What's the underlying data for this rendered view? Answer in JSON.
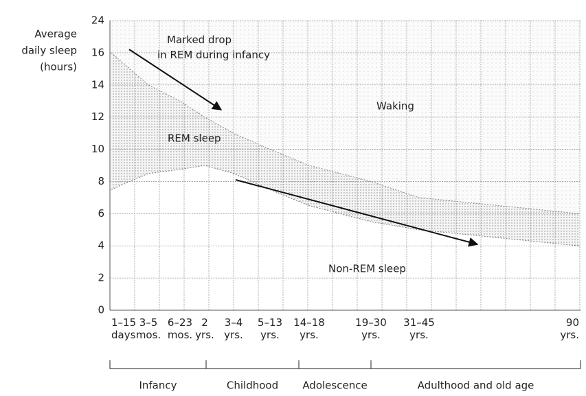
{
  "chart_data": {
    "type": "stacked-area",
    "ylabel": [
      "Average",
      "daily sleep",
      "(hours)"
    ],
    "categories": [
      "1–15 days",
      "3–5 mos.",
      "6–23 mos.",
      "2 yrs.",
      "3–4 yrs.",
      "5–13 yrs.",
      "14–18 yrs.",
      "19–30 yrs.",
      "31–45 yrs.",
      "90 yrs."
    ],
    "series": [
      {
        "name": "Non-REM sleep",
        "color": "#ffffff",
        "values": [
          7.5,
          8.5,
          8.75,
          9,
          8.5,
          7.5,
          6.5,
          5.5,
          5,
          4
        ]
      },
      {
        "name": "REM sleep",
        "color": "#cfcfcf",
        "values": [
          8.5,
          5.5,
          4.25,
          3,
          2.5,
          2.5,
          2.5,
          2.5,
          2,
          2
        ]
      }
    ],
    "ylim": [
      0,
      24
    ],
    "yticks": [
      0,
      2,
      4,
      6,
      8,
      10,
      12,
      14,
      16,
      24
    ],
    "grid": true,
    "annotations": {
      "waking": "Waking",
      "rem_drop": "Marked drop in REM during infancy"
    },
    "groups": [
      "Infancy",
      "Childhood",
      "Adolescence",
      "Adulthood and old age"
    ]
  }
}
